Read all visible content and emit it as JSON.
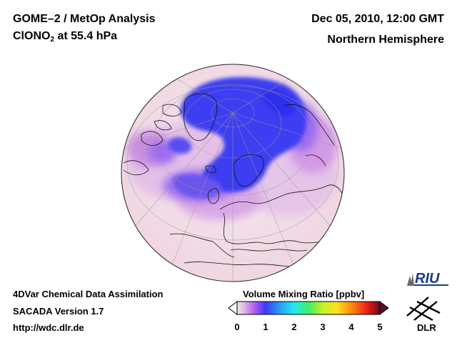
{
  "header": {
    "title_main": "GOME–2 / MetOp Analysis",
    "title_species_prefix": "ClONO",
    "title_species_sub": "2",
    "title_species_suffix": " at 55.4 hPa",
    "datetime": "Dec 05, 2010, 12:00 GMT",
    "hemisphere": "Northern Hemisphere"
  },
  "footer": {
    "line1": "4DVar Chemical Data Assimilation",
    "line2": "SACADA Version 1.7",
    "line3": "http://wdc.dlr.de"
  },
  "colorbar": {
    "title": "Volume Mixing Ratio [ppbv]",
    "ticks": [
      "0",
      "1",
      "2",
      "3",
      "4",
      "5"
    ],
    "colors": [
      "#f4e6ee",
      "#e0b5e6",
      "#b060f0",
      "#3a3af5",
      "#2a9cf8",
      "#25e8ee",
      "#3cf064",
      "#c8f028",
      "#ffe020",
      "#ff8a10",
      "#f02818",
      "#b01010",
      "#5a1028"
    ]
  },
  "logos": {
    "riu": "RIU",
    "dlr": "DLR"
  },
  "icons": [
    "riu-logo-icon",
    "dlr-logo-icon",
    "globe-map"
  ]
}
